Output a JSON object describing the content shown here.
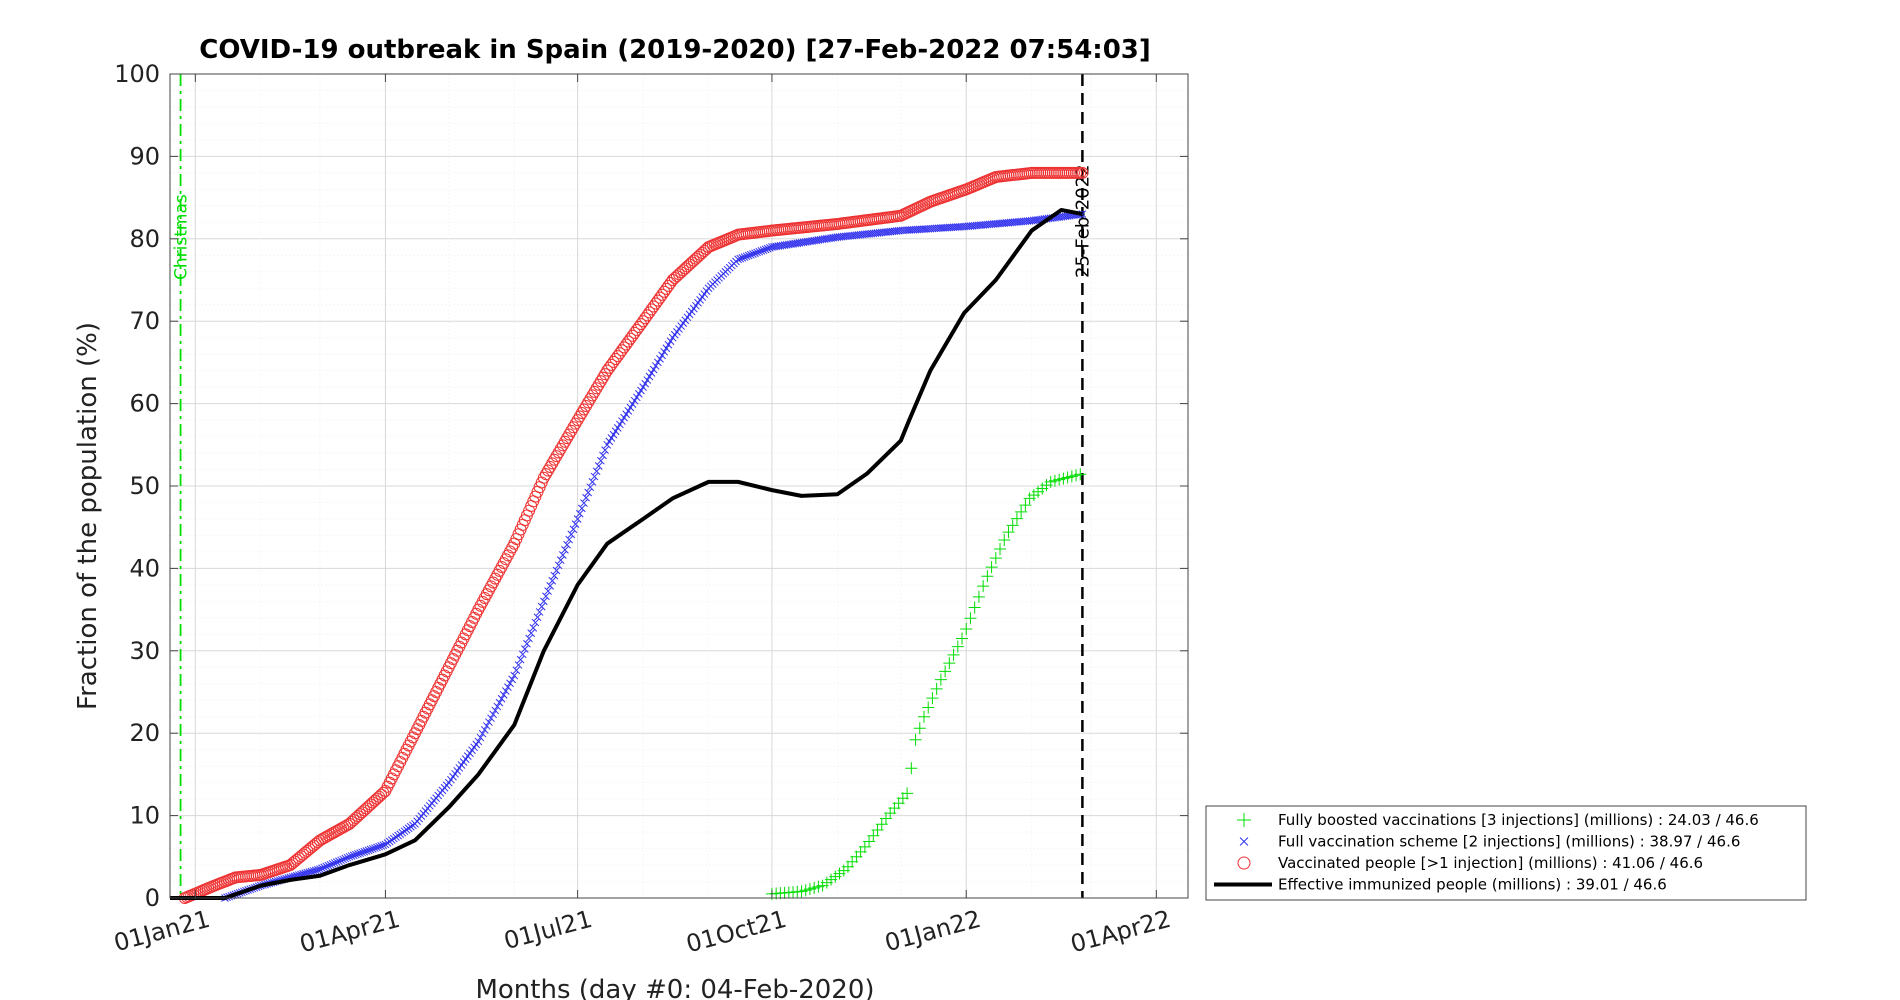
{
  "chart_data": {
    "type": "line",
    "title": "COVID-19 outbreak in Spain (2019-2020) [27-Feb-2022 07:54:03]",
    "xlabel": "Months (day #0: 04-Feb-2020)",
    "ylabel": "Fraction of the population (%)",
    "xlim": [
      "2020-12-20",
      "2022-04-16"
    ],
    "ylim": [
      0,
      100
    ],
    "x_ticks": [
      {
        "date": "2021-01-01",
        "label": "01Jan21"
      },
      {
        "date": "2021-04-01",
        "label": "01Apr21"
      },
      {
        "date": "2021-07-01",
        "label": "01Jul21"
      },
      {
        "date": "2021-10-01",
        "label": "01Oct21"
      },
      {
        "date": "2022-01-01",
        "label": "01Jan22"
      },
      {
        "date": "2022-04-01",
        "label": "01Apr22"
      }
    ],
    "y_ticks": [
      0,
      10,
      20,
      30,
      40,
      50,
      60,
      70,
      80,
      90,
      100
    ],
    "grid": true,
    "legend_position": "bottom-right",
    "vlines": [
      {
        "date": "2020-12-25",
        "label": "Christmas",
        "color": "#00dd00",
        "style": "dash-dot"
      },
      {
        "date": "2022-02-25",
        "label": "25-Feb-2022",
        "color": "#000000",
        "style": "dashed"
      }
    ],
    "series": [
      {
        "name": "Fully boosted vaccinations [3 injections] (millions) : 24.03 / 46.6",
        "marker": "plus",
        "color": "#00dd00",
        "points": [
          [
            "2021-10-01",
            0.5
          ],
          [
            "2021-10-15",
            0.8
          ],
          [
            "2021-10-25",
            1.5
          ],
          [
            "2021-11-05",
            3.5
          ],
          [
            "2021-11-15",
            6.5
          ],
          [
            "2021-11-25",
            10
          ],
          [
            "2021-12-05",
            13
          ],
          [
            "2021-12-07",
            18.5
          ],
          [
            "2021-12-12",
            22
          ],
          [
            "2021-12-20",
            26.5
          ],
          [
            "2021-12-31",
            32
          ],
          [
            "2022-01-10",
            38.5
          ],
          [
            "2022-01-20",
            44
          ],
          [
            "2022-01-31",
            48.5
          ],
          [
            "2022-02-10",
            50.5
          ],
          [
            "2022-02-25",
            51.5
          ]
        ]
      },
      {
        "name": "Full vaccination scheme [2 injections] (millions) : 38.97 / 46.6",
        "marker": "cross",
        "color": "#3333ee",
        "points": [
          [
            "2021-01-15",
            0
          ],
          [
            "2021-02-01",
            1.5
          ],
          [
            "2021-02-15",
            2.5
          ],
          [
            "2021-03-01",
            3.5
          ],
          [
            "2021-03-15",
            5
          ],
          [
            "2021-04-01",
            6.5
          ],
          [
            "2021-04-15",
            9
          ],
          [
            "2021-05-01",
            14
          ],
          [
            "2021-05-15",
            19
          ],
          [
            "2021-06-01",
            27
          ],
          [
            "2021-06-15",
            36
          ],
          [
            "2021-07-01",
            46
          ],
          [
            "2021-07-15",
            55
          ],
          [
            "2021-08-01",
            62
          ],
          [
            "2021-08-15",
            68
          ],
          [
            "2021-09-01",
            74
          ],
          [
            "2021-09-15",
            77.5
          ],
          [
            "2021-10-01",
            79
          ],
          [
            "2021-11-01",
            80.2
          ],
          [
            "2021-12-01",
            81
          ],
          [
            "2022-01-01",
            81.5
          ],
          [
            "2022-02-01",
            82.2
          ],
          [
            "2022-02-25",
            83
          ]
        ]
      },
      {
        "name": "Vaccinated people [>1 injection] (millions) : 41.06 / 46.6",
        "marker": "circle",
        "color": "#ee3333",
        "points": [
          [
            "2020-12-27",
            0
          ],
          [
            "2021-01-10",
            1.5
          ],
          [
            "2021-01-20",
            2.5
          ],
          [
            "2021-02-01",
            2.8
          ],
          [
            "2021-02-15",
            4
          ],
          [
            "2021-03-01",
            7
          ],
          [
            "2021-03-15",
            9
          ],
          [
            "2021-04-01",
            13
          ],
          [
            "2021-04-15",
            20
          ],
          [
            "2021-05-01",
            28
          ],
          [
            "2021-05-15",
            35
          ],
          [
            "2021-06-01",
            43
          ],
          [
            "2021-06-15",
            51
          ],
          [
            "2021-07-01",
            58
          ],
          [
            "2021-07-15",
            64
          ],
          [
            "2021-08-01",
            70
          ],
          [
            "2021-08-15",
            75
          ],
          [
            "2021-09-01",
            79
          ],
          [
            "2021-09-15",
            80.5
          ],
          [
            "2021-10-01",
            81
          ],
          [
            "2021-11-01",
            81.8
          ],
          [
            "2021-12-01",
            82.8
          ],
          [
            "2021-12-15",
            84.5
          ],
          [
            "2022-01-01",
            86
          ],
          [
            "2022-01-15",
            87.5
          ],
          [
            "2022-02-01",
            88
          ],
          [
            "2022-02-25",
            88
          ]
        ]
      },
      {
        "name": "Effective immunized people (millions) : 39.01 / 46.6",
        "marker": "thick-line",
        "color": "#000000",
        "points": [
          [
            "2020-12-20",
            0
          ],
          [
            "2021-01-15",
            0
          ],
          [
            "2021-02-01",
            1.5
          ],
          [
            "2021-02-15",
            2.2
          ],
          [
            "2021-03-01",
            2.7
          ],
          [
            "2021-03-15",
            4
          ],
          [
            "2021-04-01",
            5.3
          ],
          [
            "2021-04-15",
            7
          ],
          [
            "2021-05-01",
            11
          ],
          [
            "2021-05-15",
            15
          ],
          [
            "2021-06-01",
            21
          ],
          [
            "2021-06-15",
            30
          ],
          [
            "2021-07-01",
            38
          ],
          [
            "2021-07-15",
            43
          ],
          [
            "2021-08-01",
            46
          ],
          [
            "2021-08-15",
            48.5
          ],
          [
            "2021-09-01",
            50.5
          ],
          [
            "2021-09-15",
            50.5
          ],
          [
            "2021-10-01",
            49.5
          ],
          [
            "2021-10-15",
            48.8
          ],
          [
            "2021-11-01",
            49
          ],
          [
            "2021-11-15",
            51.5
          ],
          [
            "2021-12-01",
            55.5
          ],
          [
            "2021-12-05",
            58
          ],
          [
            "2021-12-15",
            64
          ],
          [
            "2021-12-31",
            71
          ],
          [
            "2022-01-15",
            75
          ],
          [
            "2022-02-01",
            81
          ],
          [
            "2022-02-15",
            83.5
          ],
          [
            "2022-02-25",
            83
          ]
        ]
      }
    ]
  }
}
